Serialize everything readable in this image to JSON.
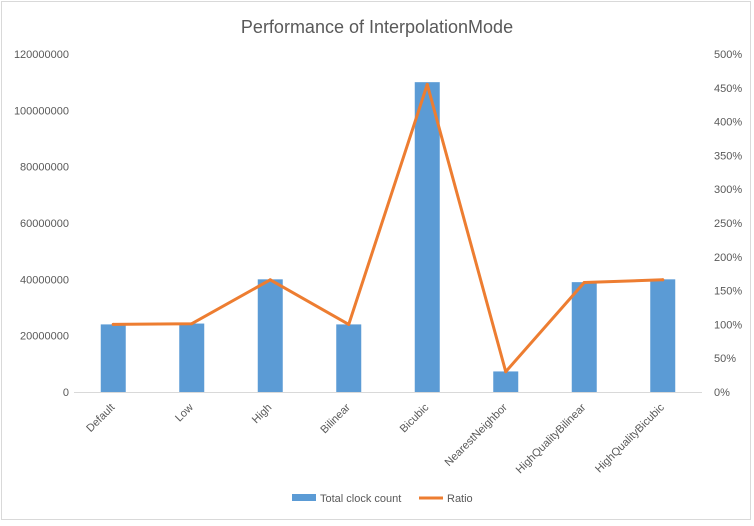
{
  "chart_data": {
    "type": "bar",
    "title": "Performance of InterpolationMode",
    "categories": [
      "Default",
      "Low",
      "High",
      "Bilinear",
      "Bicubic",
      "NearestNeighbor",
      "HighQualityBilinear",
      "HighQualityBicubic"
    ],
    "series": [
      {
        "name": "Total clock count",
        "type": "bar",
        "axis": "left",
        "color": "#5b9bd5",
        "values": [
          24000000,
          24300000,
          40000000,
          24000000,
          110000000,
          7300000,
          39000000,
          40000000
        ]
      },
      {
        "name": "Ratio",
        "type": "line",
        "axis": "right",
        "color": "#ed7d31",
        "values": [
          1.0,
          1.01,
          1.66,
          1.0,
          4.55,
          0.3,
          1.62,
          1.66
        ]
      }
    ],
    "y_left": {
      "ylim": [
        0,
        120000000
      ],
      "ticks": [
        "0",
        "20000000",
        "40000000",
        "60000000",
        "80000000",
        "100000000",
        "120000000"
      ]
    },
    "y_right": {
      "ylim": [
        0,
        5
      ],
      "ticks": [
        "0%",
        "50%",
        "100%",
        "150%",
        "200%",
        "250%",
        "300%",
        "350%",
        "400%",
        "450%",
        "500%"
      ]
    },
    "grid": false,
    "legend": "bottom-center"
  }
}
